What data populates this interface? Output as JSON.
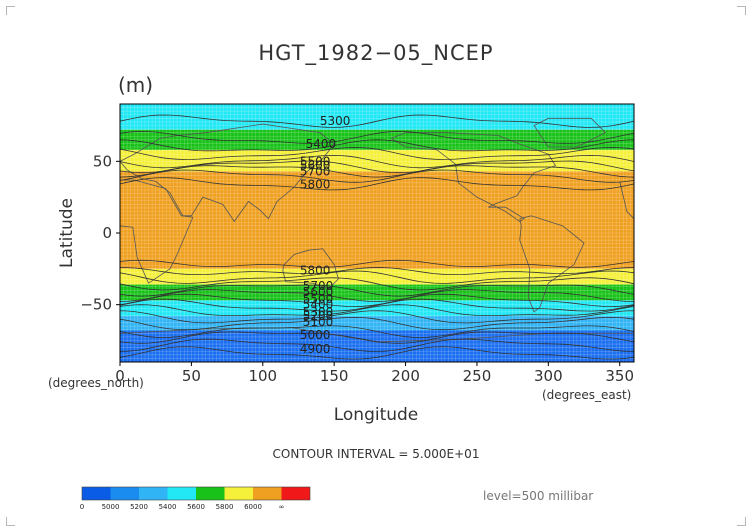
{
  "chart_data": {
    "type": "heatmap",
    "title": "HGT_1982−05_NCEP",
    "units_label": "(m)",
    "xlabel": "Longitude",
    "ylabel": "Latitude",
    "x_unit_note": "(degrees_east)",
    "y_unit_note": "(degrees_north)",
    "xlim": [
      0,
      360
    ],
    "ylim": [
      -90,
      90
    ],
    "x_ticks": [
      0,
      50,
      100,
      150,
      200,
      250,
      300,
      350
    ],
    "y_ticks": [
      50,
      0,
      -50
    ],
    "y_tick_labels": [
      "50",
      "0",
      "−50"
    ],
    "grid": true,
    "footer_interval": "CONTOUR INTERVAL = 5.000E+01",
    "level_label": "level=500 millibar",
    "colorbar": {
      "labels": [
        "0",
        "5000",
        "5200",
        "5400",
        "5600",
        "5800",
        "6000",
        "∞"
      ],
      "colors": [
        "#0a5ce6",
        "#1a8cf0",
        "#30b4f5",
        "#22e8f5",
        "#18c218",
        "#f5f03a",
        "#f0a020",
        "#f01818"
      ]
    },
    "bands": [
      {
        "lat_top": 90,
        "lat_bottom": 72,
        "color": "#22e8f5"
      },
      {
        "lat_top": 72,
        "lat_bottom": 58,
        "color": "#18c218"
      },
      {
        "lat_top": 58,
        "lat_bottom": 43,
        "color": "#f5f03a"
      },
      {
        "lat_top": 43,
        "lat_bottom": -25,
        "color": "#f0a020"
      },
      {
        "lat_top": -25,
        "lat_bottom": -36,
        "color": "#f5f03a"
      },
      {
        "lat_top": -36,
        "lat_bottom": -47,
        "color": "#18c218"
      },
      {
        "lat_top": -47,
        "lat_bottom": -58,
        "color": "#22e8f5"
      },
      {
        "lat_top": -58,
        "lat_bottom": -68,
        "color": "#30b4f5"
      },
      {
        "lat_top": -68,
        "lat_bottom": -90,
        "color": "#1a6ef0"
      }
    ],
    "contour_labels": [
      {
        "text": "5300",
        "lon": 140,
        "lat": 78
      },
      {
        "text": "5400",
        "lon": 130,
        "lat": 62
      },
      {
        "text": "5500",
        "lon": 126,
        "lat": 50
      },
      {
        "text": "5600",
        "lon": 126,
        "lat": 47
      },
      {
        "text": "5700",
        "lon": 126,
        "lat": 43
      },
      {
        "text": "5800",
        "lon": 126,
        "lat": 34
      },
      {
        "text": "5800",
        "lon": 126,
        "lat": -26
      },
      {
        "text": "5700",
        "lon": 128,
        "lat": -37
      },
      {
        "text": "5600",
        "lon": 128,
        "lat": -41
      },
      {
        "text": "5500",
        "lon": 128,
        "lat": -46
      },
      {
        "text": "5400",
        "lon": 128,
        "lat": -50
      },
      {
        "text": "5300",
        "lon": 128,
        "lat": -55
      },
      {
        "text": "5200",
        "lon": 128,
        "lat": -58
      },
      {
        "text": "5100",
        "lon": 128,
        "lat": -62
      },
      {
        "text": "5000",
        "lon": 126,
        "lat": -71
      },
      {
        "text": "4900",
        "lon": 126,
        "lat": -81
      }
    ],
    "contour_lats": [
      78,
      66,
      60,
      55,
      50,
      47,
      44,
      40,
      34,
      -22,
      -27,
      -31,
      -35,
      -39,
      -43,
      -47,
      -51,
      -55,
      -59,
      -63,
      -68,
      -72,
      -78,
      -84
    ]
  }
}
